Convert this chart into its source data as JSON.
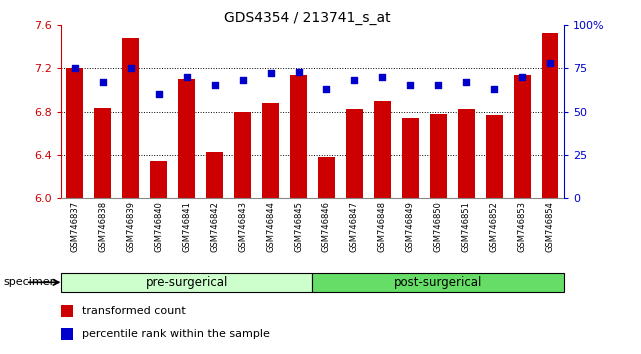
{
  "title": "GDS4354 / 213741_s_at",
  "categories": [
    "GSM746837",
    "GSM746838",
    "GSM746839",
    "GSM746840",
    "GSM746841",
    "GSM746842",
    "GSM746843",
    "GSM746844",
    "GSM746845",
    "GSM746846",
    "GSM746847",
    "GSM746848",
    "GSM746849",
    "GSM746850",
    "GSM746851",
    "GSM746852",
    "GSM746853",
    "GSM746854"
  ],
  "bar_values": [
    7.2,
    6.83,
    7.48,
    6.34,
    7.1,
    6.43,
    6.8,
    6.88,
    7.14,
    6.38,
    6.82,
    6.9,
    6.74,
    6.78,
    6.82,
    6.77,
    7.14,
    7.52
  ],
  "dot_values": [
    75,
    67,
    75,
    60,
    70,
    65,
    68,
    72,
    73,
    63,
    68,
    70,
    65,
    65,
    67,
    63,
    70,
    78
  ],
  "bar_color": "#cc0000",
  "dot_color": "#0000cc",
  "ylim_left": [
    6.0,
    7.6
  ],
  "ylim_right": [
    0,
    100
  ],
  "yticks_left": [
    6.0,
    6.4,
    6.8,
    7.2,
    7.6
  ],
  "yticks_right": [
    0,
    25,
    50,
    75,
    100
  ],
  "ytick_labels_right": [
    "0",
    "25",
    "50",
    "75",
    "100%"
  ],
  "grid_values": [
    6.4,
    6.8,
    7.2
  ],
  "pre_surgical_count": 9,
  "post_surgical_count": 9,
  "pre_label": "pre-surgerical",
  "post_label": "post-surgerical",
  "specimen_label": "specimen",
  "legend_bar_label": "transformed count",
  "legend_dot_label": "percentile rank within the sample",
  "pre_color": "#ccffcc",
  "post_color": "#66dd66",
  "bar_width": 0.6,
  "background_color": "#ffffff",
  "tick_area_color": "#cccccc"
}
